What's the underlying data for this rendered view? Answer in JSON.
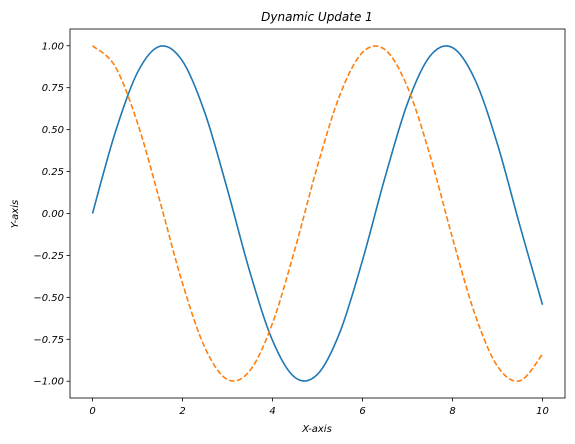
{
  "chart_data": {
    "type": "line",
    "title": "Dynamic Update 1",
    "xlabel": "X-axis",
    "ylabel": "Y-axis",
    "xlim": [
      -0.5,
      10.5
    ],
    "ylim": [
      -1.1,
      1.1
    ],
    "grid": false,
    "x_ticks": [
      0,
      2,
      4,
      6,
      8,
      10
    ],
    "x_tick_labels": [
      "0",
      "2",
      "4",
      "6",
      "8",
      "10"
    ],
    "y_ticks": [
      1.0,
      0.75,
      0.5,
      0.25,
      0.0,
      -0.25,
      -0.5,
      -0.75,
      -1.0
    ],
    "y_tick_labels": [
      "1.00",
      "0.75",
      "0.50",
      "0.25",
      "0.00",
      "−0.25",
      "−0.50",
      "−0.75",
      "−1.00"
    ],
    "x": [
      0.0,
      0.5,
      1.0,
      1.5,
      2.0,
      2.5,
      3.0,
      3.5,
      4.0,
      4.5,
      5.0,
      5.5,
      6.0,
      6.5,
      7.0,
      7.5,
      8.0,
      8.5,
      9.0,
      9.5,
      10.0
    ],
    "series": [
      {
        "color": "#1f77b4",
        "dash": "solid",
        "values": [
          0.0,
          0.479,
          0.841,
          0.997,
          0.909,
          0.598,
          0.141,
          -0.351,
          -0.757,
          -0.978,
          -0.959,
          -0.706,
          -0.279,
          0.215,
          0.657,
          0.938,
          0.989,
          0.798,
          0.412,
          -0.075,
          -0.544
        ]
      },
      {
        "color": "#ff7f0e",
        "dash": "dashed",
        "values": [
          1.0,
          0.878,
          0.54,
          0.071,
          -0.416,
          -0.801,
          -0.99,
          -0.936,
          -0.654,
          -0.211,
          0.284,
          0.709,
          0.96,
          0.977,
          0.754,
          0.347,
          -0.146,
          -0.602,
          -0.911,
          -0.997,
          -0.839
        ]
      }
    ]
  }
}
